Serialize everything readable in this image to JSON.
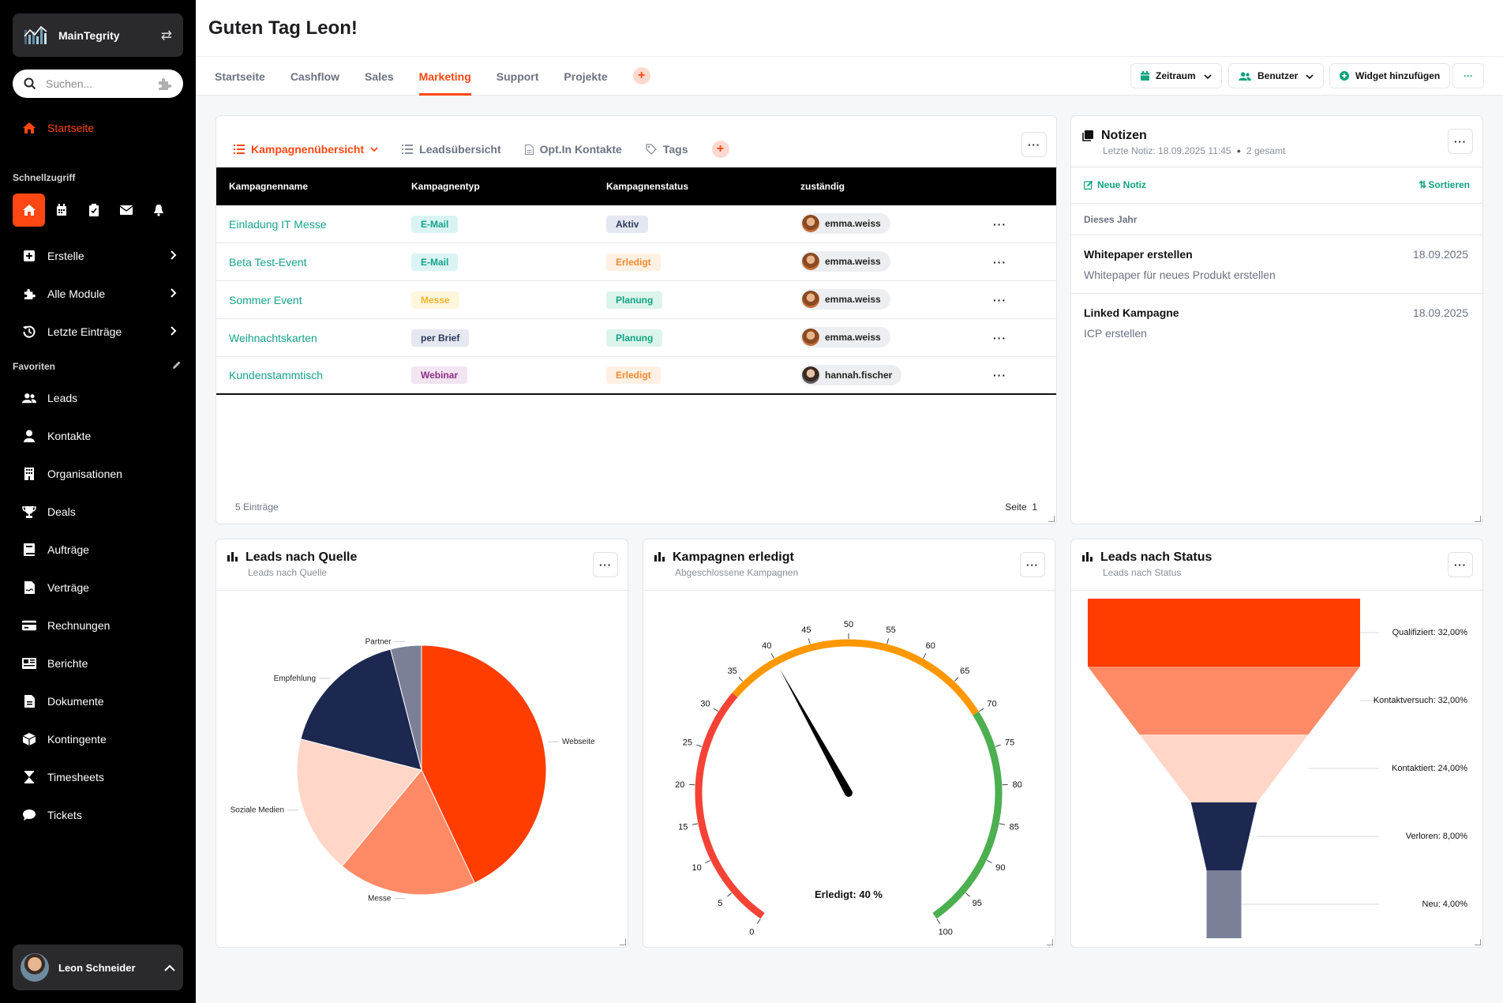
{
  "app": {
    "name": "MainTegrity"
  },
  "search": {
    "placeholder": "Suchen..."
  },
  "sidebar": {
    "home": "Startseite",
    "quick_label": "Schnellzugriff",
    "menu": [
      {
        "label": "Erstelle",
        "icon": "plus-square-icon"
      },
      {
        "label": "Alle Module",
        "icon": "puzzle-icon"
      },
      {
        "label": "Letzte Einträge",
        "icon": "history-icon"
      }
    ],
    "favorites_label": "Favoriten",
    "favorites": [
      {
        "label": "Leads",
        "icon": "users-icon"
      },
      {
        "label": "Kontakte",
        "icon": "user-icon"
      },
      {
        "label": "Organisationen",
        "icon": "building-icon"
      },
      {
        "label": "Deals",
        "icon": "trophy-icon"
      },
      {
        "label": "Aufträge",
        "icon": "book-icon"
      },
      {
        "label": "Verträge",
        "icon": "file-signature-icon"
      },
      {
        "label": "Rechnungen",
        "icon": "credit-card-icon"
      },
      {
        "label": "Berichte",
        "icon": "newspaper-icon"
      },
      {
        "label": "Dokumente",
        "icon": "document-icon"
      },
      {
        "label": "Kontingente",
        "icon": "box-icon"
      },
      {
        "label": "Timesheets",
        "icon": "hourglass-icon"
      },
      {
        "label": "Tickets",
        "icon": "chat-icon"
      }
    ],
    "user": "Leon Schneider"
  },
  "header": {
    "greeting": "Guten Tag Leon!",
    "tabs": [
      "Startseite",
      "Cashflow",
      "Sales",
      "Marketing",
      "Support",
      "Projekte"
    ],
    "active_tab": "Marketing",
    "buttons": {
      "zeitraum": "Zeitraum",
      "benutzer": "Benutzer",
      "widget": "Widget hinzufügen",
      "more": "···"
    }
  },
  "campaigns": {
    "tabs": [
      "Kampagnenübersicht",
      "Leadsübersicht",
      "Opt.In Kontakte",
      "Tags"
    ],
    "columns": [
      "Kampagnenname",
      "Kampagnentyp",
      "Kampagnenstatus",
      "zuständig"
    ],
    "rows": [
      {
        "name": "Einladung IT Messe",
        "type": "E-Mail",
        "status": "Aktiv",
        "owner": "emma.weiss"
      },
      {
        "name": "Beta Test-Event",
        "type": "E-Mail",
        "status": "Erledigt",
        "owner": "emma.weiss"
      },
      {
        "name": "Sommer Event",
        "type": "Messe",
        "status": "Planung",
        "owner": "emma.weiss"
      },
      {
        "name": "Weihnachtskarten",
        "type": "per Brief",
        "status": "Planung",
        "owner": "emma.weiss"
      },
      {
        "name": "Kundenstammtisch",
        "type": "Webinar",
        "status": "Erledigt",
        "owner": "hannah.fischer"
      }
    ],
    "row_action": "···",
    "count": "5 Einträge",
    "page_label": "Seite",
    "page": "1"
  },
  "notes": {
    "title": "Notizen",
    "meta": "Letzte Notiz: 18.09.2025 11:45",
    "total": "2 gesamt",
    "new": "Neue Notiz",
    "sort": "Sortieren",
    "group": "Dieses Jahr",
    "items": [
      {
        "title": "Whitepaper erstellen",
        "desc": "Whitepaper für neues Produkt erstellen",
        "date": "18.09.2025"
      },
      {
        "title": "Linked Kampagne",
        "desc": "ICP erstellen",
        "date": "18.09.2025"
      }
    ]
  },
  "leads_source": {
    "title": "Leads nach Quelle",
    "subtitle": "Leads nach Quelle"
  },
  "campaigns_done": {
    "title": "Kampagnen erledigt",
    "subtitle": "Abgeschlossene Kampagnen"
  },
  "leads_status": {
    "title": "Leads nach Status",
    "subtitle": "Leads nach Status"
  },
  "colors": {
    "accent": "#ff4713",
    "green": "#10a37f",
    "navy": "#1d2850"
  },
  "chart_data": [
    {
      "type": "pie",
      "title": "Leads nach Quelle",
      "slices": [
        {
          "label": "Webseite",
          "value": 43,
          "color": "#ff3d00"
        },
        {
          "label": "Messe",
          "value": 18,
          "color": "#ff8a65"
        },
        {
          "label": "Soziale Medien",
          "value": 18,
          "color": "#ffd6c8"
        },
        {
          "label": "Empfehlung",
          "value": 17,
          "color": "#1d2850"
        },
        {
          "label": "Partner",
          "value": 4,
          "color": "#7b8098"
        }
      ]
    },
    {
      "type": "gauge",
      "title": "Kampagnen erledigt",
      "value": 40,
      "min": 0,
      "max": 100,
      "ticks": [
        0,
        5,
        10,
        15,
        20,
        25,
        30,
        35,
        40,
        45,
        50,
        55,
        60,
        65,
        70,
        75,
        80,
        85,
        90,
        95,
        100
      ],
      "bands": [
        {
          "from": 0,
          "to": 33,
          "color": "#f44336"
        },
        {
          "from": 33,
          "to": 70,
          "color": "#ff9800"
        },
        {
          "from": 70,
          "to": 100,
          "color": "#4caf50"
        }
      ],
      "label": "Erledigt: 40 %"
    },
    {
      "type": "funnel",
      "title": "Leads nach Status",
      "stages": [
        {
          "label": "Qualifiziert: 32,00%",
          "value": 32,
          "color": "#ff3d00"
        },
        {
          "label": "Kontaktversuch: 32,00%",
          "value": 32,
          "color": "#ff8a65"
        },
        {
          "label": "Kontaktiert: 24,00%",
          "value": 24,
          "color": "#ffd6c8"
        },
        {
          "label": "Verloren: 8,00%",
          "value": 8,
          "color": "#1d2850"
        },
        {
          "label": "Neu: 4,00%",
          "value": 4,
          "color": "#7b8098"
        }
      ]
    }
  ]
}
